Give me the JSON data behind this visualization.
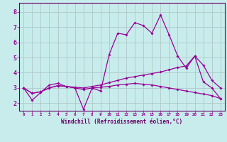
{
  "background_color": "#c8ecec",
  "grid_color": "#b0c8c8",
  "line_color": "#990099",
  "border_color": "#660066",
  "xlabel": "Windchill (Refroidissement éolien,°C)",
  "xlabel_color": "#660066",
  "yticks": [
    2,
    3,
    4,
    5,
    6,
    7,
    8
  ],
  "xticks": [
    0,
    1,
    2,
    3,
    4,
    5,
    6,
    7,
    8,
    9,
    10,
    11,
    12,
    13,
    14,
    15,
    16,
    17,
    18,
    19,
    20,
    21,
    22,
    23
  ],
  "xlim": [
    -0.5,
    23.5
  ],
  "ylim": [
    1.5,
    8.6
  ],
  "series": [
    [
      3.0,
      2.2,
      2.7,
      3.2,
      3.3,
      3.1,
      3.0,
      1.6,
      3.0,
      2.8,
      5.2,
      6.6,
      6.5,
      7.3,
      7.1,
      6.6,
      7.8,
      6.5,
      5.1,
      4.3,
      5.1,
      3.4,
      3.0,
      2.3
    ],
    [
      3.0,
      2.65,
      2.75,
      3.0,
      3.15,
      3.1,
      3.05,
      3.0,
      3.1,
      3.2,
      3.35,
      3.5,
      3.65,
      3.75,
      3.85,
      3.95,
      4.05,
      4.2,
      4.35,
      4.45,
      5.1,
      4.5,
      3.5,
      3.0
    ],
    [
      3.0,
      2.65,
      2.75,
      3.0,
      3.15,
      3.1,
      3.0,
      2.9,
      3.0,
      3.05,
      3.1,
      3.2,
      3.25,
      3.3,
      3.25,
      3.2,
      3.1,
      3.0,
      2.9,
      2.8,
      2.7,
      2.6,
      2.5,
      2.3
    ]
  ]
}
